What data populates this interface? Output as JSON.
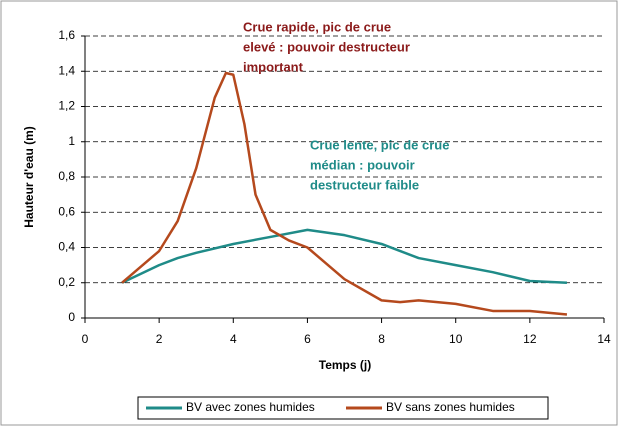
{
  "chart_data": {
    "type": "line",
    "xlabel": "Temps (j)",
    "ylabel": "Hauteur d'eau (m)",
    "xlim": [
      0,
      14
    ],
    "xticks": [
      0,
      2,
      4,
      6,
      8,
      10,
      12,
      14
    ],
    "ylim": [
      0,
      1.6
    ],
    "yticks": [
      0,
      {
        "value": 0.2,
        "label": "0,2"
      },
      {
        "value": 0.4,
        "label": "0,4"
      },
      {
        "value": 0.6,
        "label": "0,6"
      },
      {
        "value": 0.8,
        "label": "0,8"
      },
      1,
      {
        "value": 1.2,
        "label": "1,2"
      },
      {
        "value": 1.4,
        "label": "1,4"
      },
      {
        "value": 1.6,
        "label": "1,6"
      }
    ],
    "grid": true,
    "legend": "bottom",
    "series": [
      {
        "name": "BV avec zones humides",
        "color": "#1f8b88",
        "x": [
          1,
          2,
          2.5,
          3,
          4,
          5,
          6,
          7,
          8,
          9,
          10,
          11,
          12,
          13
        ],
        "values": [
          0.2,
          0.3,
          0.34,
          0.37,
          0.42,
          0.46,
          0.5,
          0.47,
          0.42,
          0.34,
          0.3,
          0.26,
          0.21,
          0.2
        ]
      },
      {
        "name": "BV sans zones humides",
        "color": "#b5491d",
        "x": [
          1,
          2,
          2.5,
          3,
          3.5,
          3.8,
          4,
          4.3,
          4.6,
          5,
          5.5,
          6,
          7,
          8,
          8.5,
          9,
          10,
          11,
          12,
          13
        ],
        "values": [
          0.2,
          0.38,
          0.55,
          0.85,
          1.25,
          1.39,
          1.38,
          1.1,
          0.7,
          0.5,
          0.44,
          0.4,
          0.22,
          0.1,
          0.09,
          0.1,
          0.08,
          0.04,
          0.04,
          0.02
        ]
      }
    ],
    "annotations": [
      {
        "lines": [
          "Crue rapide, pic de crue",
          "elevé : pouvoir destructeur",
          "important"
        ],
        "color": "#8b1a1a"
      },
      {
        "lines": [
          "Crue lente, pic de crue",
          "médian : pouvoir",
          "destructeur faible"
        ],
        "color": "#1f8b88"
      }
    ]
  }
}
